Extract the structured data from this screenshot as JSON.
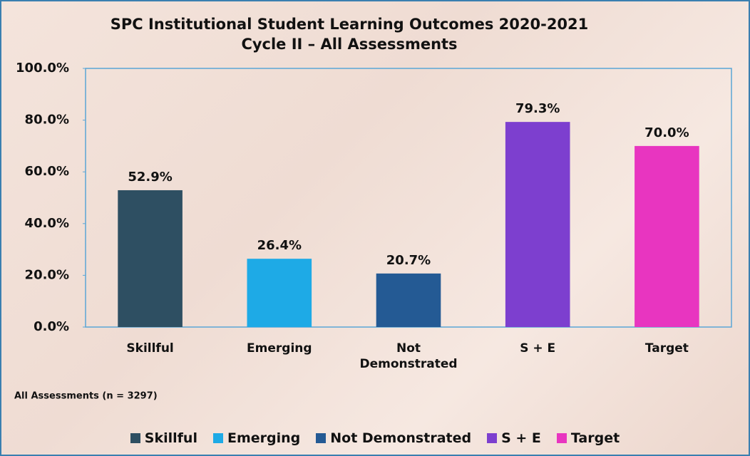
{
  "chart_data": {
    "type": "bar",
    "title": "SPC Institutional Student Learning Outcomes 2020-2021",
    "subtitle": "Cycle II – All Assessments",
    "note": "All Assessments (n = 3297)",
    "categories": [
      "Skillful",
      "Emerging",
      "Not Demonstrated",
      "S + E",
      "Target"
    ],
    "values": [
      52.9,
      26.4,
      20.7,
      79.3,
      70.0
    ],
    "value_labels": [
      "52.9%",
      "26.4%",
      "20.7%",
      "79.3%",
      "70.0%"
    ],
    "colors": [
      "#2e4f62",
      "#1eaae6",
      "#245a94",
      "#7d3fcf",
      "#e835c0"
    ],
    "ylim": [
      0,
      100
    ],
    "yticks": [
      {
        "value": 0,
        "label": "0.0%"
      },
      {
        "value": 20,
        "label": "20.0%"
      },
      {
        "value": 40,
        "label": "40.0%"
      },
      {
        "value": 60,
        "label": "60.0%"
      },
      {
        "value": 80,
        "label": "80.0%"
      },
      {
        "value": 100,
        "label": "100.0%"
      }
    ],
    "grid": false,
    "legend": "bottom"
  }
}
